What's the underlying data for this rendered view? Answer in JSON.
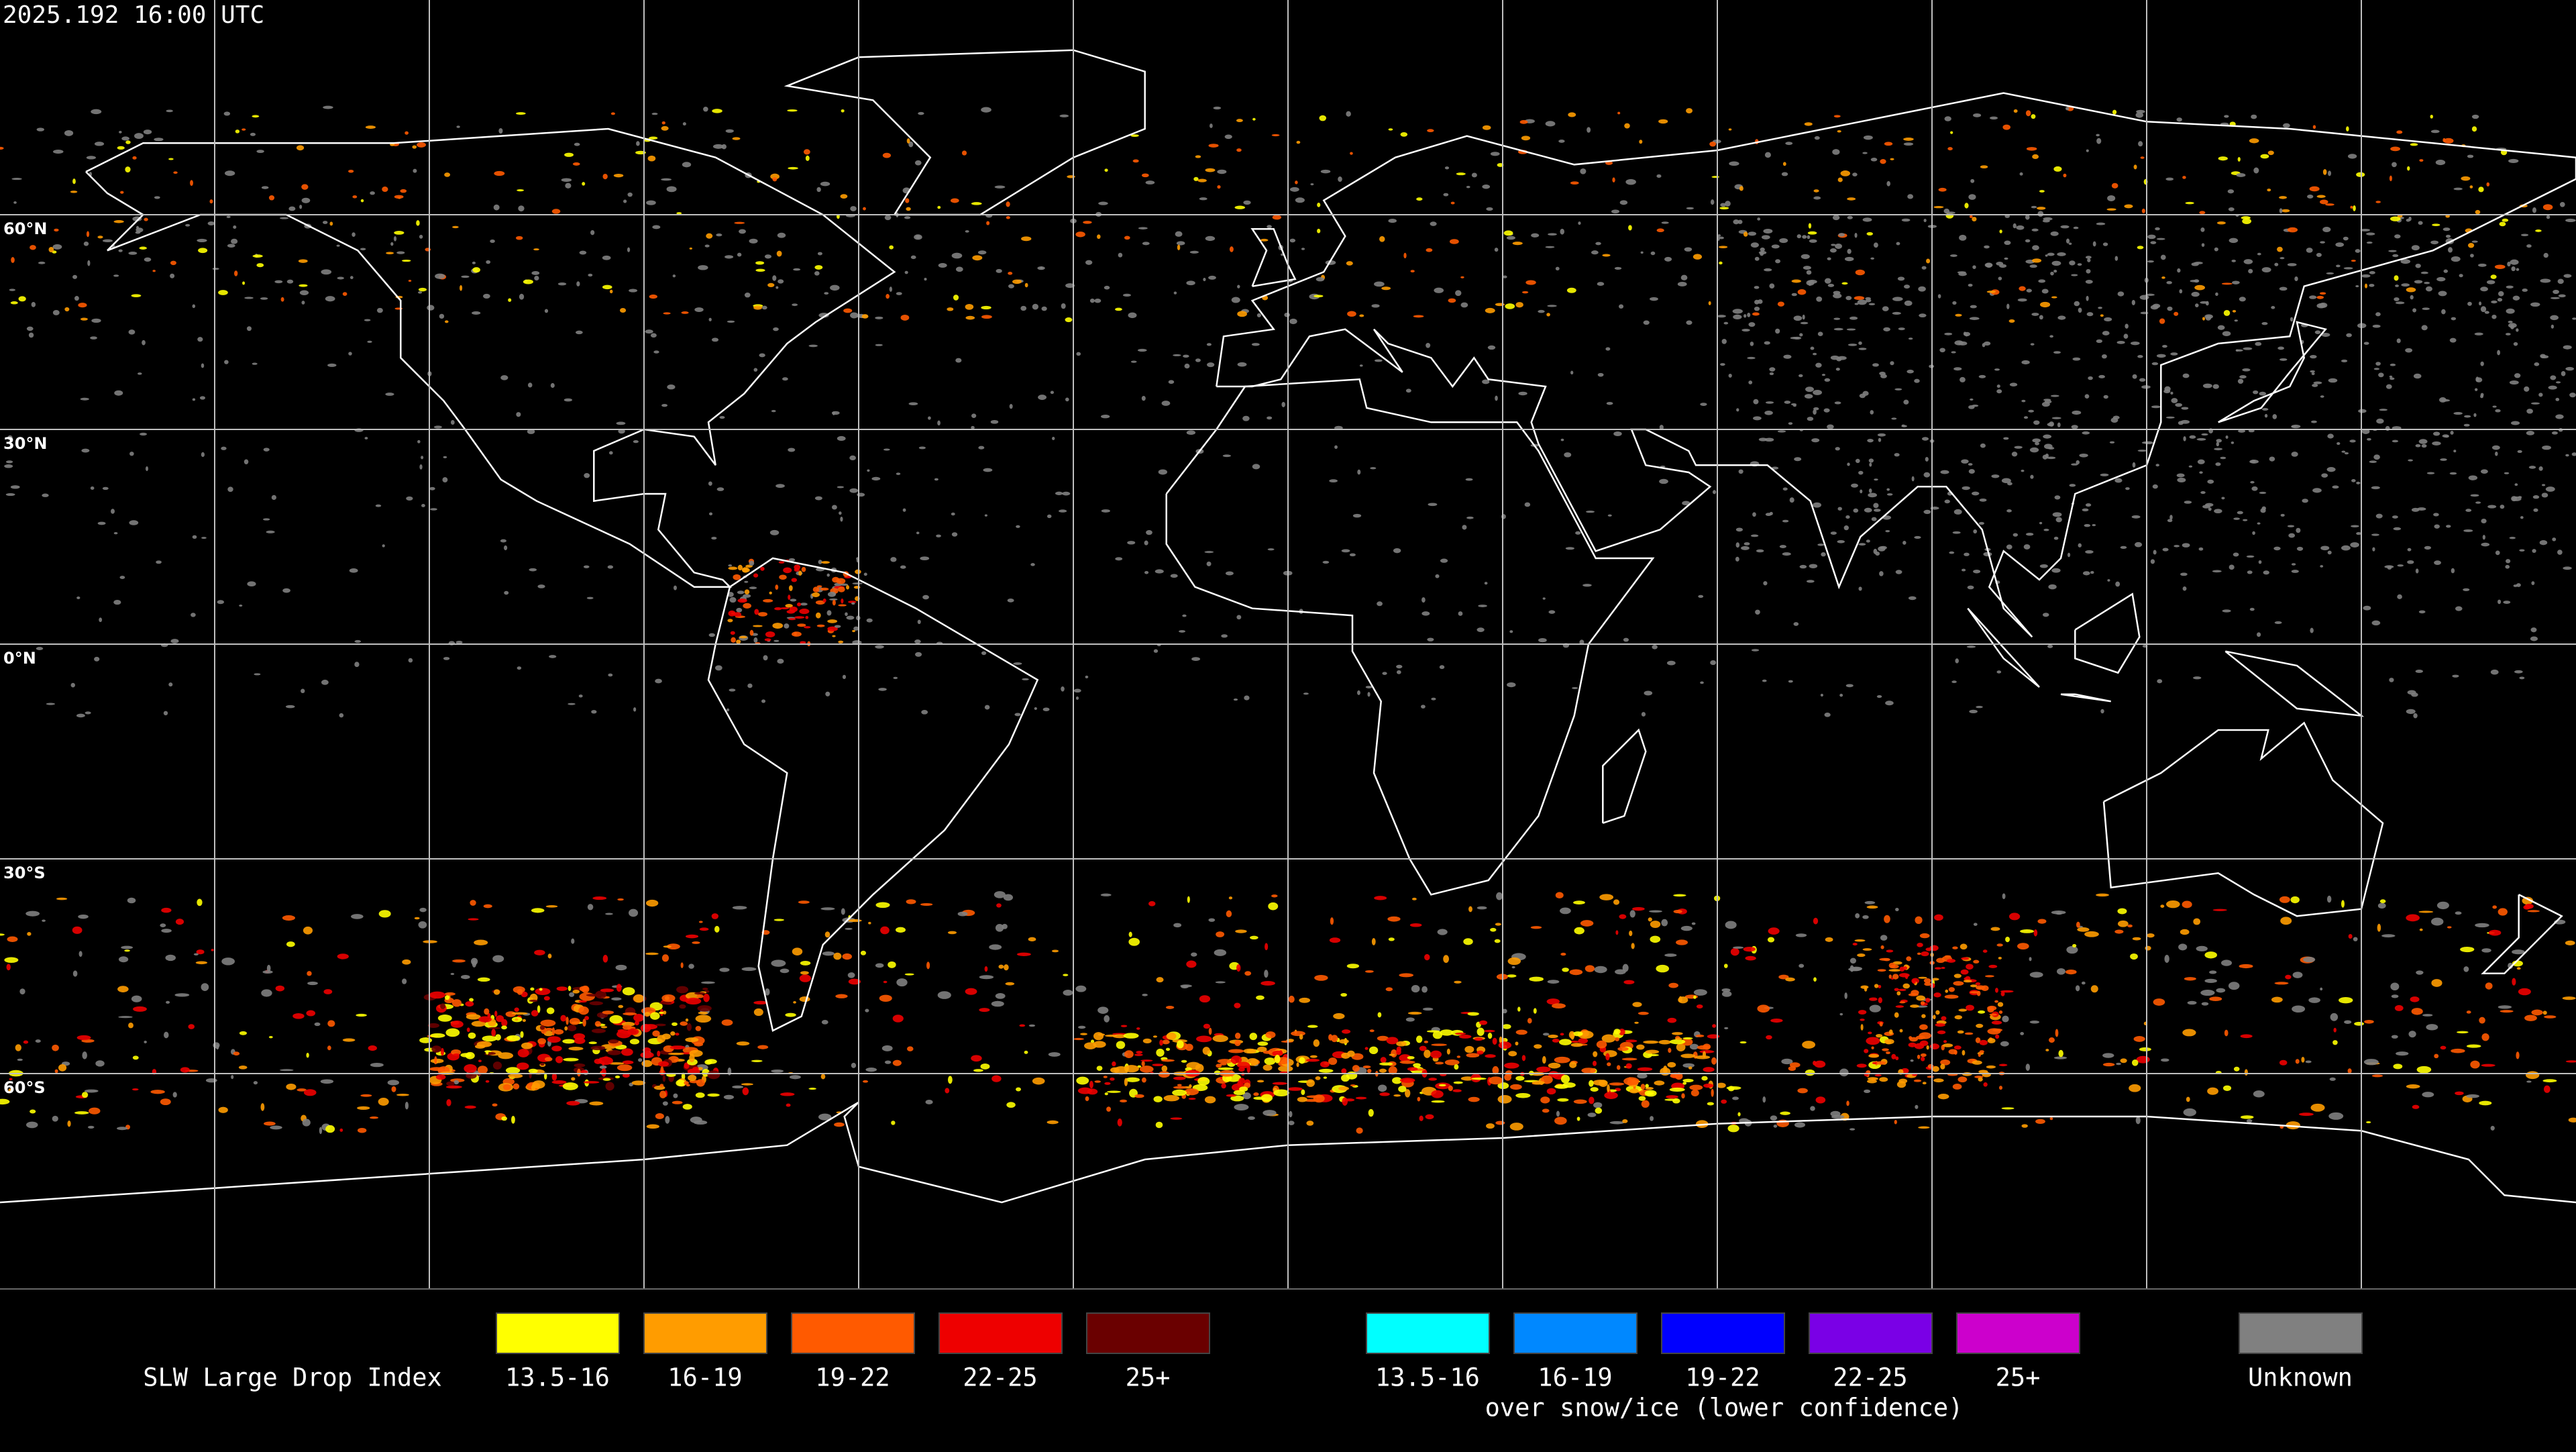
{
  "header": {
    "timestamp": "2025.192 16:00 UTC"
  },
  "map": {
    "latitude_labels": [
      "60°N",
      "30°N",
      "0°N",
      "30°S",
      "60°S"
    ]
  },
  "legend": {
    "title": "SLW Large Drop Index",
    "items": [
      {
        "label": "13.5-16",
        "color": "#ffff00"
      },
      {
        "label": "16-19",
        "color": "#ff9c00"
      },
      {
        "label": "19-22",
        "color": "#ff5a00"
      },
      {
        "label": "22-25",
        "color": "#ee0000"
      },
      {
        "label": "25+",
        "color": "#6a0000"
      }
    ],
    "snow_ice_items": [
      {
        "label": "13.5-16",
        "color": "#00ffff"
      },
      {
        "label": "16-19",
        "color": "#0088ff"
      },
      {
        "label": "19-22",
        "color": "#0000ff"
      },
      {
        "label": "22-25",
        "color": "#7a00e6"
      },
      {
        "label": "25+",
        "color": "#cc00cc"
      }
    ],
    "snow_ice_note": "over snow/ice (lower confidence)",
    "unknown": {
      "label": "Unknown",
      "color": "#808080"
    }
  }
}
